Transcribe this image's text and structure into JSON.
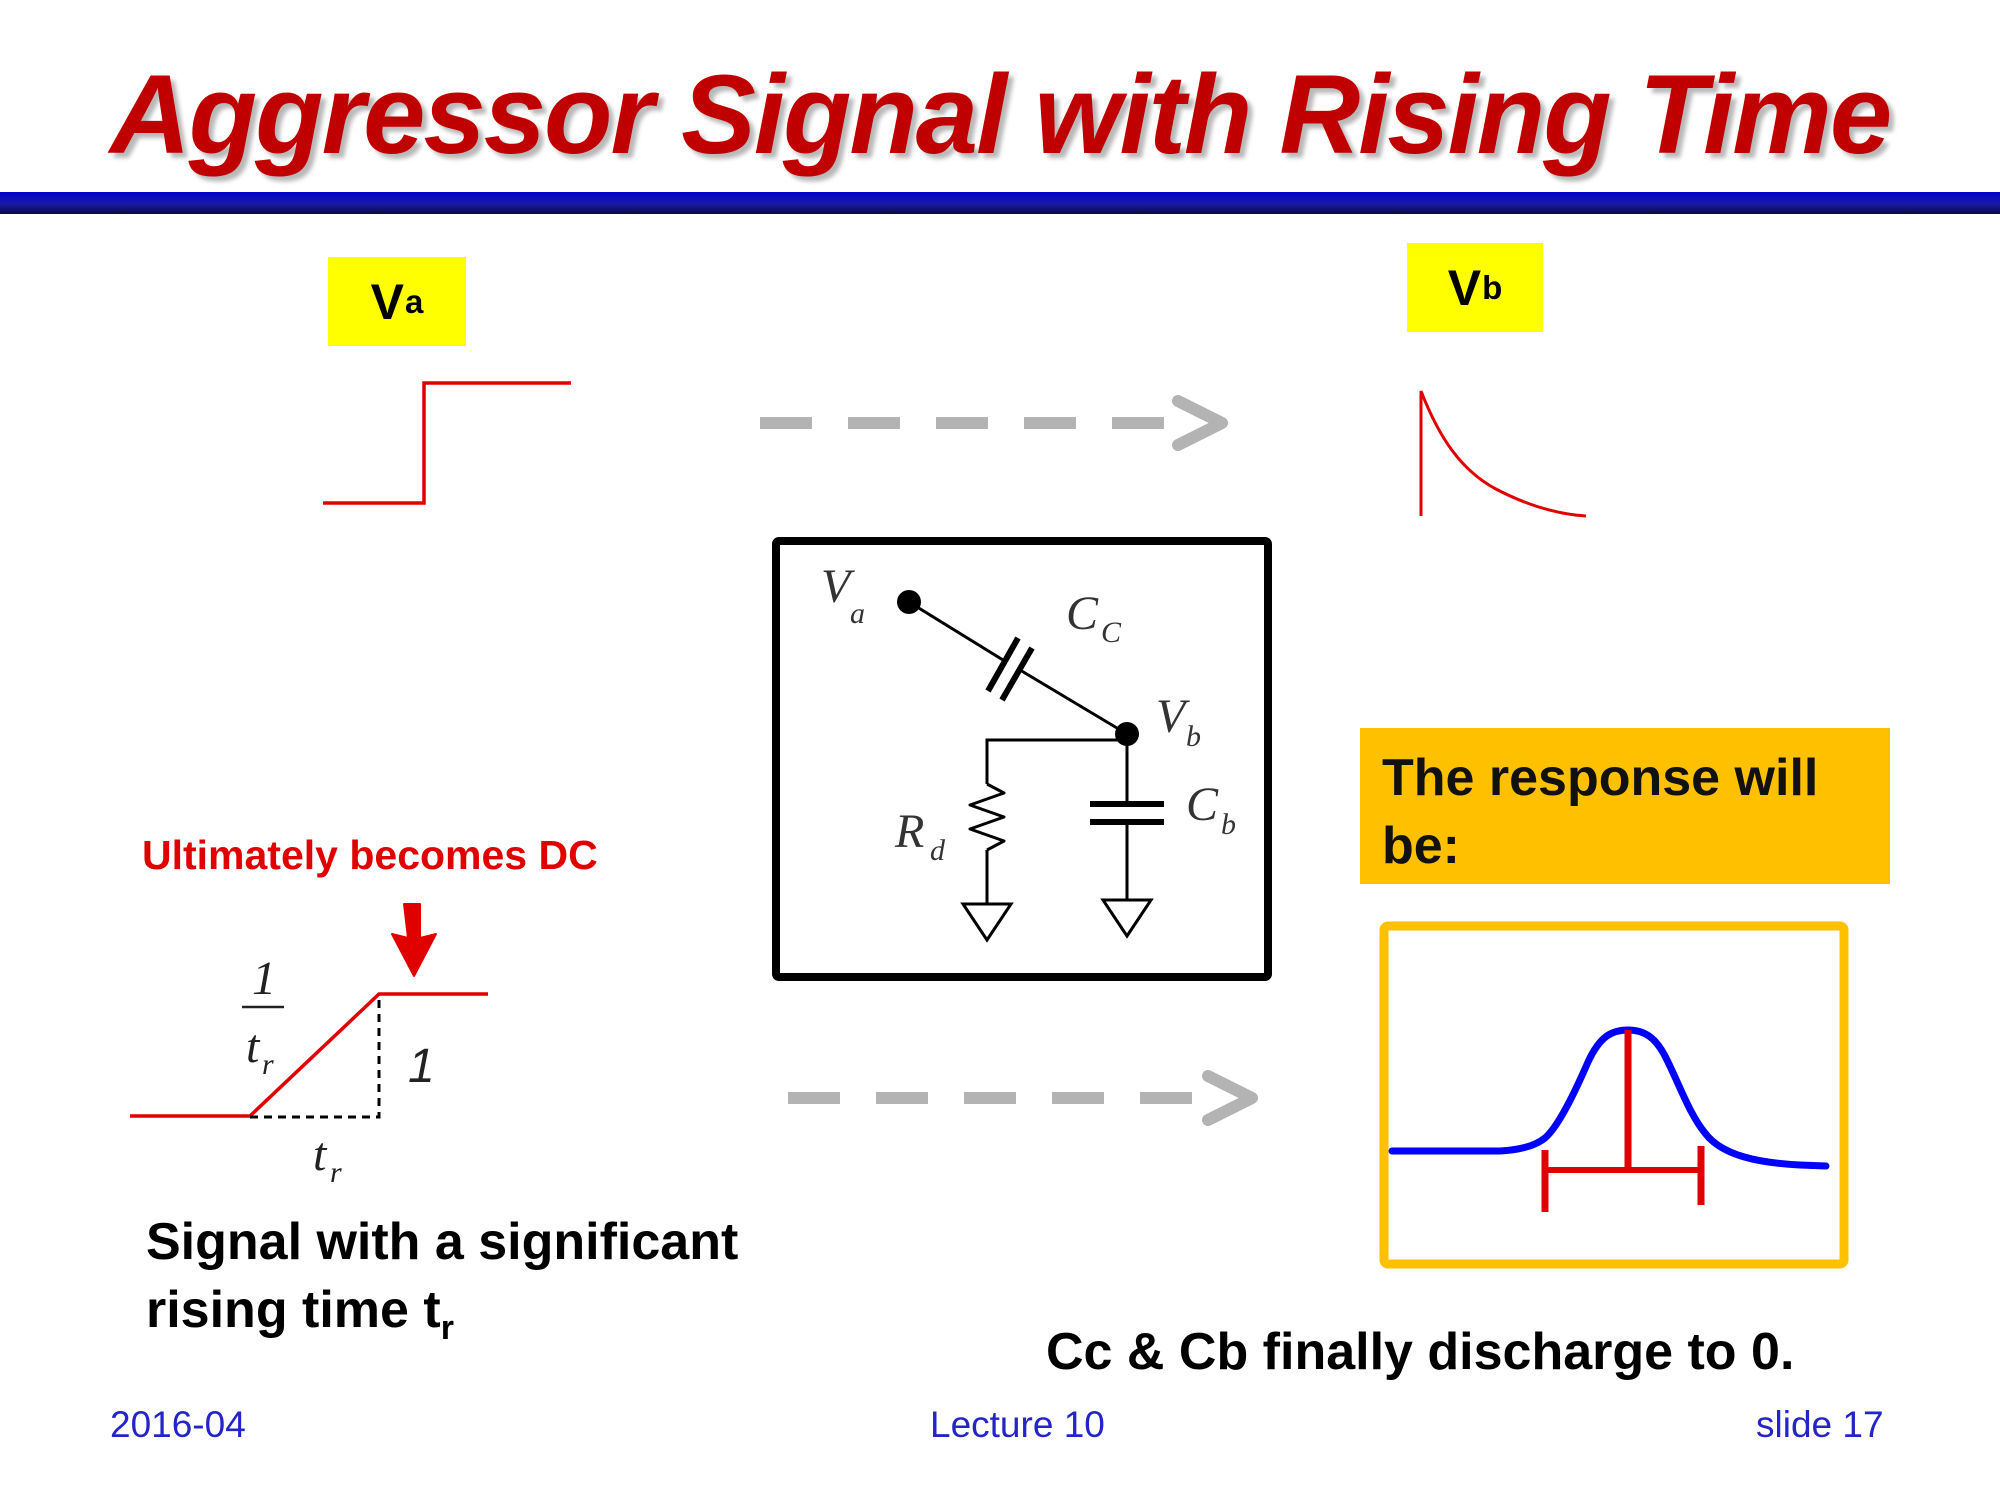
{
  "title": "Aggressor Signal with Rising Time",
  "input_label": {
    "main": "V",
    "sub": "a"
  },
  "output_label": {
    "main": "V",
    "sub": "b"
  },
  "circuit": {
    "va": {
      "main": "V",
      "sub": "a"
    },
    "cc": {
      "main": "C",
      "sub": "C"
    },
    "vb": {
      "main": "V",
      "sub": "b"
    },
    "rd": {
      "main": "R",
      "sub": "d"
    },
    "cb": {
      "main": "C",
      "sub": "b"
    }
  },
  "response_text": "The response will be:",
  "ramp": {
    "annotation": "Ultimately becomes DC",
    "slope_numerator": "1",
    "slope_denominator": {
      "main": "t",
      "sub": "r"
    },
    "step_height": "1",
    "rise_time": {
      "main": "t",
      "sub": "r"
    }
  },
  "caption": {
    "line1": "Signal with a significant",
    "line2_main": "rising time t",
    "line2_sub": "r"
  },
  "conclusion": "Cc & Cb finally discharge to 0.",
  "footer": {
    "date": "2016-04",
    "lecture": "Lecture 10",
    "slide": "slide 17"
  },
  "colors": {
    "title": "#c00000",
    "header_rule": "#0000cc",
    "waveform": "#e00000",
    "response_curve": "#0000ff",
    "label_box": "#ffff00",
    "response_box": "#ffc000",
    "arrow": "#b3b3b3",
    "footer_text": "#2424c8"
  }
}
